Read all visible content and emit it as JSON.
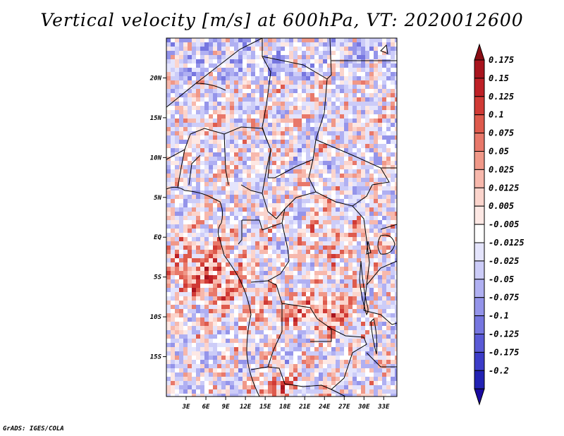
{
  "title": "Vertical velocity [m/s] at 600hPa, VT: 2020012600",
  "credit": "GrADS: IGES/COLA",
  "chart_data": {
    "type": "heatmap",
    "title": "Vertical velocity [m/s] at 600hPa, VT: 2020012600",
    "variable": "Vertical velocity",
    "units": "m/s",
    "level": "600hPa",
    "valid_time": "2020012600",
    "lon_range": [
      0,
      35
    ],
    "lat_range": [
      -20,
      25
    ],
    "x_ticks": [
      {
        "value": 3,
        "label": "3E"
      },
      {
        "value": 6,
        "label": "6E"
      },
      {
        "value": 9,
        "label": "9E"
      },
      {
        "value": 12,
        "label": "12E"
      },
      {
        "value": 15,
        "label": "15E"
      },
      {
        "value": 18,
        "label": "18E"
      },
      {
        "value": 21,
        "label": "21E"
      },
      {
        "value": 24,
        "label": "24E"
      },
      {
        "value": 27,
        "label": "27E"
      },
      {
        "value": 30,
        "label": "30E"
      },
      {
        "value": 33,
        "label": "33E"
      }
    ],
    "y_ticks": [
      {
        "value": 20,
        "label": "20N"
      },
      {
        "value": 15,
        "label": "15N"
      },
      {
        "value": 10,
        "label": "10N"
      },
      {
        "value": 5,
        "label": "5N"
      },
      {
        "value": 0,
        "label": "EQ"
      },
      {
        "value": -5,
        "label": "5S"
      },
      {
        "value": -10,
        "label": "10S"
      },
      {
        "value": -15,
        "label": "15S"
      }
    ],
    "colorbar": [
      {
        "label": "0.175",
        "color": "#a8141e"
      },
      {
        "label": "0.15",
        "color": "#be2026"
      },
      {
        "label": "0.125",
        "color": "#d03a35"
      },
      {
        "label": "0.1",
        "color": "#de5a4c"
      },
      {
        "label": "0.075",
        "color": "#e8786a"
      },
      {
        "label": "0.05",
        "color": "#f09888"
      },
      {
        "label": "0.025",
        "color": "#f7b8ac"
      },
      {
        "label": "0.0125",
        "color": "#fbd4cc"
      },
      {
        "label": "0.005",
        "color": "#fde8e4"
      },
      {
        "label": "-0.005",
        "color": "#ffffff"
      },
      {
        "label": "-0.0125",
        "color": "#e4e4fc"
      },
      {
        "label": "-0.025",
        "color": "#ccccf8"
      },
      {
        "label": "-0.05",
        "color": "#b0b0f2"
      },
      {
        "label": "-0.075",
        "color": "#9494ea"
      },
      {
        "label": "-0.1",
        "color": "#7676e0"
      },
      {
        "label": "-0.125",
        "color": "#5a5ad6"
      },
      {
        "label": "-0.175",
        "color": "#3c3cc8"
      },
      {
        "label": "-0.2",
        "color": "#2222b4"
      }
    ],
    "colorbar_tips": {
      "top": "#8a0d14",
      "bottom": "#1a0aa0"
    }
  }
}
